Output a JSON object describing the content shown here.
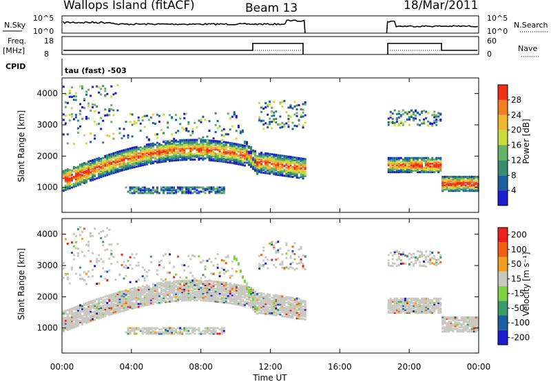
{
  "header": {
    "title": "Wallops Island (fitACF)",
    "beam": "Beam 13",
    "date": "18/Mar/2011"
  },
  "status": {
    "nsky_label": "N.Sky",
    "nsky_ticks": [
      "10^5",
      "10^0"
    ],
    "nsearch_label": "N.Search",
    "nsearch_ticks": [
      "10^5",
      "10^0"
    ],
    "freq_label_1": "Freq.",
    "freq_label_2": "[MHz]",
    "freq_ticks": [
      "18",
      "8"
    ],
    "nave_label": "Nave",
    "nave_ticks": [
      "60",
      "0"
    ],
    "cpid_label": "CPID",
    "cpid_value": "tau (fast) -503"
  },
  "colors": {
    "power": [
      "#1b1bd0",
      "#1a5fa0",
      "#3a8c6e",
      "#66b266",
      "#c8dc3c",
      "#f0b830",
      "#f08020",
      "#ee3018"
    ],
    "velocity": [
      "#ee1f1f",
      "#f06010",
      "#f0a020",
      "#c8c8c0",
      "#80d040",
      "#3a9a6a",
      "#1a5fa0",
      "#1b1bd0"
    ],
    "echo_gray": "#c8c8c0"
  },
  "chart_data": [
    {
      "type": "heatmap",
      "name": "power",
      "ylabel": "Slant Range [km]",
      "xlabel": "",
      "x_ticks": [
        "00:00",
        "04:00",
        "08:00",
        "12:00",
        "16:00",
        "20:00",
        "00:00"
      ],
      "x_range_hours": [
        0,
        24
      ],
      "y_ticks": [
        1000,
        2000,
        3000,
        4000
      ],
      "ylim": [
        200,
        4500
      ],
      "colorbar": {
        "label": "Power [dB]",
        "tick_labels": [
          "4",
          "8",
          "12",
          "16",
          "20",
          "24",
          "28"
        ]
      },
      "data_gap_hours": [
        14.0,
        18.7
      ]
    },
    {
      "type": "heatmap",
      "name": "velocity",
      "ylabel": "Slant Range [km]",
      "xlabel": "Time UT",
      "x_ticks": [
        "00:00",
        "04:00",
        "08:00",
        "12:00",
        "16:00",
        "20:00",
        "00:00"
      ],
      "x_range_hours": [
        0,
        24
      ],
      "y_ticks": [
        1000,
        2000,
        3000,
        4000
      ],
      "ylim": [
        200,
        4500
      ],
      "colorbar": {
        "label": "Velocity [m s⁻¹]",
        "tick_labels": [
          "200",
          "100",
          "50",
          "15",
          "-15",
          "-50",
          "-100",
          "-200"
        ]
      },
      "data_gap_hours": [
        14.0,
        18.7
      ]
    }
  ]
}
